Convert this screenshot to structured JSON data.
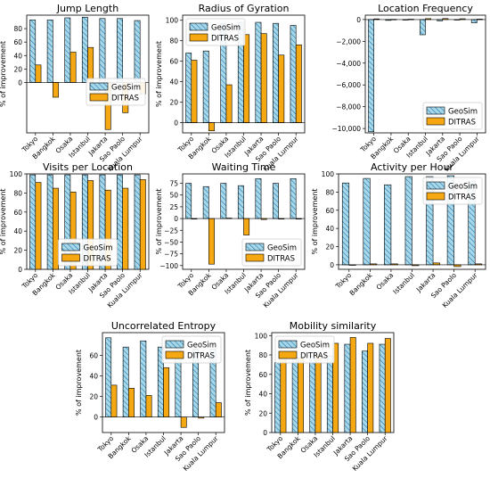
{
  "colors": {
    "geosim": "#a8d8e8",
    "geosim_hatch": "#1f77b4",
    "ditras": "#f5a811",
    "edge": "#000000"
  },
  "chart_data": [
    {
      "type": "bar",
      "title": "Jump Length",
      "ylabel": "% of improvement",
      "categories": [
        "Tokyo",
        "Bangkok",
        "Osaka",
        "Istanbul",
        "Jakarta",
        "Sao Paolo",
        "Kuala Lumpur"
      ],
      "ylim": [
        -75,
        100
      ],
      "yticks": [
        0,
        20,
        40,
        60,
        80
      ],
      "legend": "center-right",
      "series": [
        {
          "name": "GeoSim",
          "values": [
            93,
            93,
            96,
            97,
            95,
            95,
            92
          ]
        },
        {
          "name": "DITRAS",
          "values": [
            26,
            -22,
            45,
            52,
            -70,
            -45,
            -17
          ]
        }
      ]
    },
    {
      "type": "bar",
      "title": "Radius of Gyration",
      "ylabel": "% of improvement",
      "categories": [
        "Tokyo",
        "Bangkok",
        "Osaka",
        "Istanbul",
        "Jakarta",
        "Sao Paolo",
        "Kuala Lumpur"
      ],
      "ylim": [
        -10,
        105
      ],
      "yticks": [
        0,
        20,
        40,
        60,
        80,
        100
      ],
      "legend": "upper-left",
      "series": [
        {
          "name": "GeoSim",
          "values": [
            68,
            70,
            97,
            98,
            98,
            97,
            95
          ]
        },
        {
          "name": "DITRAS",
          "values": [
            61,
            -8,
            37,
            86,
            87,
            66,
            76
          ]
        }
      ]
    },
    {
      "type": "bar",
      "title": "Location Frequency",
      "ylabel": "",
      "categories": [
        "Tokyo",
        "Bangkok",
        "Osaka",
        "Istanbul",
        "Jakarta",
        "Sao Paolo",
        "Kuala Lumpur"
      ],
      "ylim": [
        -10400,
        400
      ],
      "yticks": [
        0,
        -2000,
        -4000,
        -6000,
        -8000,
        -10000
      ],
      "legend": "lower-right",
      "series": [
        {
          "name": "GeoSim",
          "values": [
            -10300,
            -80,
            -50,
            -1400,
            -120,
            -40,
            -300
          ]
        },
        {
          "name": "DITRAS",
          "values": [
            60,
            20,
            30,
            80,
            90,
            70,
            40
          ]
        }
      ]
    },
    {
      "type": "bar",
      "title": "Visits per Location",
      "ylabel": "% of improvement",
      "categories": [
        "Tokyo",
        "Bangkok",
        "Osaka",
        "Istanbul",
        "Jakarta",
        "Sao Paolo",
        "Kuala Lumpur"
      ],
      "ylim": [
        0,
        100
      ],
      "yticks": [
        0,
        20,
        40,
        60,
        80,
        100
      ],
      "legend": "lower-center",
      "series": [
        {
          "name": "GeoSim",
          "values": [
            99,
            99,
            99,
            99,
            99,
            99,
            99
          ]
        },
        {
          "name": "DITRAS",
          "values": [
            91,
            85,
            81,
            93,
            83,
            85,
            94
          ]
        }
      ]
    },
    {
      "type": "bar",
      "title": "Waiting Time",
      "ylabel": "% of improvement",
      "categories": [
        "Tokyo",
        "Bangkok",
        "Osaka",
        "Istanbul",
        "Jakarta",
        "Sao Paolo",
        "Kuala Lumpur"
      ],
      "ylim": [
        -108,
        95
      ],
      "yticks": [
        75,
        50,
        25,
        0,
        -25,
        -50,
        -75,
        -100
      ],
      "legend": "lower-right",
      "series": [
        {
          "name": "GeoSim",
          "values": [
            75,
            68,
            75,
            70,
            85,
            75,
            85
          ]
        },
        {
          "name": "DITRAS",
          "values": [
            0,
            -97,
            1,
            -35,
            -2,
            0,
            0
          ]
        }
      ]
    },
    {
      "type": "bar",
      "title": "Activity per Hour",
      "ylabel": "% of improvement",
      "categories": [
        "Tokyo",
        "Bangkok",
        "Osaka",
        "Istanbul",
        "Jakarta",
        "Sao Paolo",
        "Kuala Lumpur"
      ],
      "ylim": [
        -5,
        100
      ],
      "yticks": [
        0,
        20,
        40,
        60,
        80,
        100
      ],
      "legend": "upper-right",
      "series": [
        {
          "name": "GeoSim",
          "values": [
            90,
            95,
            88,
            97,
            97,
            98,
            92
          ]
        },
        {
          "name": "DITRAS",
          "values": [
            0,
            1,
            1,
            -1,
            2,
            -2,
            1
          ]
        }
      ]
    },
    {
      "type": "bar",
      "title": "Uncorrelated Entropy",
      "ylabel": "% of improvement",
      "categories": [
        "Tokyo",
        "Bangkok",
        "Osaka",
        "Istanbul",
        "Jakarta",
        "Sao Paolo",
        "Kuala Lumpur"
      ],
      "ylim": [
        -15,
        82
      ],
      "yticks": [
        0,
        20,
        40,
        60
      ],
      "legend": "upper-right",
      "series": [
        {
          "name": "GeoSim",
          "values": [
            77,
            68,
            74,
            68,
            67,
            66,
            66
          ]
        },
        {
          "name": "DITRAS",
          "values": [
            31,
            28,
            21,
            48,
            -10,
            -1,
            14
          ]
        }
      ]
    },
    {
      "type": "bar",
      "title": "Mobility similarity",
      "ylabel": "% of improvement",
      "categories": [
        "Tokyo",
        "Bangkok",
        "Osaka",
        "Istanbul",
        "Jakarta",
        "Sao Paolo",
        "Kuala Lumpur"
      ],
      "ylim": [
        0,
        103
      ],
      "yticks": [
        0,
        20,
        40,
        60,
        80,
        100
      ],
      "legend": "upper-left",
      "series": [
        {
          "name": "GeoSim",
          "values": [
            72,
            78,
            79,
            79,
            91,
            84,
            91
          ]
        },
        {
          "name": "DITRAS",
          "values": [
            80,
            77,
            80,
            92,
            98,
            92,
            97
          ]
        }
      ]
    }
  ]
}
